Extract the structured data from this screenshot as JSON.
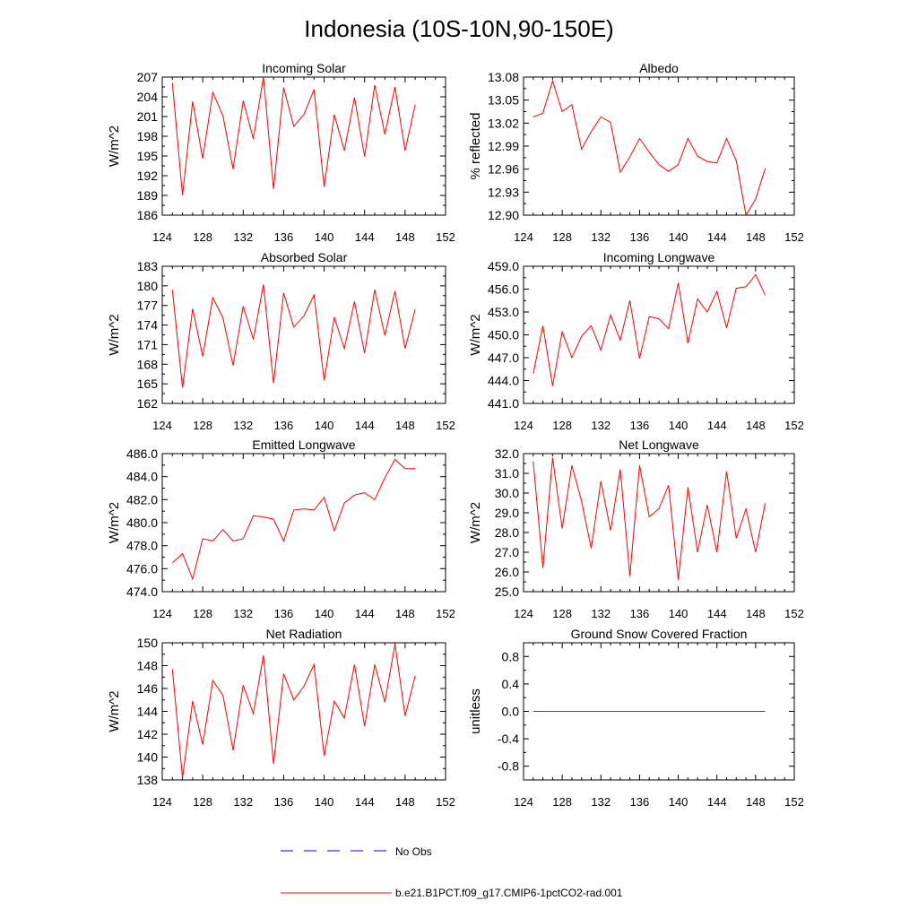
{
  "title": "Indonesia (10S-10N,90-150E)",
  "colors": {
    "series": "#ff0000",
    "obs": "#0000ff",
    "axis": "#000000"
  },
  "legend": {
    "obs_label": "No Obs",
    "run_label": "b.e21.B1PCT.f09_g17.CMIP6-1pctCO2-rad.001"
  },
  "chart_data": [
    {
      "type": "line",
      "title": "Incoming Solar",
      "ylabel": "W/m^2",
      "xlim": [
        124,
        152
      ],
      "xticks": [
        124,
        128,
        132,
        136,
        140,
        144,
        148,
        152
      ],
      "ylim": [
        186,
        207
      ],
      "yticks": [
        "186",
        "189",
        "192",
        "195",
        "198",
        "201",
        "204",
        "207"
      ],
      "ytick_values": [
        186,
        189,
        192,
        195,
        198,
        201,
        204,
        207
      ],
      "x": [
        125,
        126,
        127,
        128,
        129,
        130,
        131,
        132,
        133,
        134,
        135,
        136,
        137,
        138,
        139,
        140,
        141,
        142,
        143,
        144,
        145,
        146,
        147,
        148,
        149
      ],
      "series": [
        {
          "values": [
            206.1,
            189.0,
            203.3,
            194.6,
            204.7,
            201.1,
            193.0,
            203.4,
            197.6,
            207.0,
            190.0,
            205.4,
            199.5,
            201.3,
            205.1,
            190.3,
            201.3,
            195.8,
            203.9,
            194.9,
            205.8,
            198.3,
            205.5,
            195.8,
            202.8
          ]
        }
      ]
    },
    {
      "type": "line",
      "title": "Albedo",
      "ylabel": "% reflected",
      "xlim": [
        124,
        152
      ],
      "xticks": [
        124,
        128,
        132,
        136,
        140,
        144,
        148,
        152
      ],
      "ylim": [
        12.9,
        13.08
      ],
      "yticks": [
        "12.90",
        "12.93",
        "12.96",
        "12.99",
        "13.02",
        "13.05",
        "13.08"
      ],
      "ytick_values": [
        12.9,
        12.93,
        12.96,
        12.99,
        13.02,
        13.05,
        13.08
      ],
      "x": [
        125,
        126,
        127,
        128,
        129,
        130,
        131,
        132,
        133,
        134,
        135,
        136,
        137,
        138,
        139,
        140,
        141,
        142,
        143,
        144,
        145,
        146,
        147,
        148,
        149
      ],
      "series": [
        {
          "values": [
            13.028,
            13.033,
            13.075,
            13.035,
            13.044,
            12.986,
            13.009,
            13.028,
            13.021,
            12.956,
            12.976,
            13.0,
            12.982,
            12.966,
            12.957,
            12.966,
            13.0,
            12.977,
            12.97,
            12.968,
            13.0,
            12.971,
            12.9,
            12.921,
            12.961
          ]
        }
      ]
    },
    {
      "type": "line",
      "title": "Absorbed Solar",
      "ylabel": "W/m^2",
      "xlim": [
        124,
        152
      ],
      "xticks": [
        124,
        128,
        132,
        136,
        140,
        144,
        148,
        152
      ],
      "ylim": [
        162,
        183
      ],
      "yticks": [
        "162",
        "165",
        "168",
        "171",
        "174",
        "177",
        "180",
        "183"
      ],
      "ytick_values": [
        162,
        165,
        168,
        171,
        174,
        177,
        180,
        183
      ],
      "x": [
        125,
        126,
        127,
        128,
        129,
        130,
        131,
        132,
        133,
        134,
        135,
        136,
        137,
        138,
        139,
        140,
        141,
        142,
        143,
        144,
        145,
        146,
        147,
        148,
        149
      ],
      "series": [
        {
          "values": [
            179.4,
            164.4,
            176.5,
            169.2,
            178.2,
            175.1,
            167.8,
            176.9,
            171.8,
            180.2,
            165.1,
            178.9,
            173.7,
            175.4,
            178.6,
            165.5,
            175.2,
            170.4,
            177.6,
            169.7,
            179.4,
            172.4,
            179.2,
            170.4,
            176.4
          ]
        }
      ]
    },
    {
      "type": "line",
      "title": "Incoming Longwave",
      "ylabel": "W/m^2",
      "xlim": [
        124,
        152
      ],
      "xticks": [
        124,
        128,
        132,
        136,
        140,
        144,
        148,
        152
      ],
      "ylim": [
        441,
        459
      ],
      "yticks": [
        "441.0",
        "444.0",
        "447.0",
        "450.0",
        "453.0",
        "456.0",
        "459.0"
      ],
      "ytick_values": [
        441,
        444,
        447,
        450,
        453,
        456,
        459
      ],
      "x": [
        125,
        126,
        127,
        128,
        129,
        130,
        131,
        132,
        133,
        134,
        135,
        136,
        137,
        138,
        139,
        140,
        141,
        142,
        143,
        144,
        145,
        146,
        147,
        148,
        149
      ],
      "series": [
        {
          "values": [
            444.9,
            451.2,
            443.3,
            450.4,
            447.0,
            449.8,
            451.2,
            448.0,
            452.6,
            449.3,
            454.5,
            446.9,
            452.4,
            452.1,
            450.8,
            456.8,
            448.9,
            454.7,
            453.0,
            455.7,
            450.9,
            456.1,
            456.3,
            457.9,
            455.2
          ]
        }
      ]
    },
    {
      "type": "line",
      "title": "Emitted Longwave",
      "ylabel": "W/m^2",
      "xlim": [
        124,
        152
      ],
      "xticks": [
        124,
        128,
        132,
        136,
        140,
        144,
        148,
        152
      ],
      "ylim": [
        474,
        486
      ],
      "yticks": [
        "474.0",
        "476.0",
        "478.0",
        "480.0",
        "482.0",
        "484.0",
        "486.0"
      ],
      "ytick_values": [
        474,
        476,
        478,
        480,
        482,
        484,
        486
      ],
      "x": [
        125,
        126,
        127,
        128,
        129,
        130,
        131,
        132,
        133,
        134,
        135,
        136,
        137,
        138,
        139,
        140,
        141,
        142,
        143,
        144,
        145,
        146,
        147,
        148,
        149
      ],
      "series": [
        {
          "values": [
            476.5,
            477.3,
            475.1,
            478.6,
            478.4,
            479.4,
            478.4,
            478.6,
            480.6,
            480.5,
            480.3,
            478.4,
            481.1,
            481.2,
            481.1,
            482.2,
            479.3,
            481.7,
            482.4,
            482.6,
            482.0,
            483.9,
            485.5,
            484.7,
            484.7
          ]
        }
      ]
    },
    {
      "type": "line",
      "title": "Net Longwave",
      "ylabel": "W/m^2",
      "xlim": [
        124,
        152
      ],
      "xticks": [
        124,
        128,
        132,
        136,
        140,
        144,
        148,
        152
      ],
      "ylim": [
        25,
        32
      ],
      "yticks": [
        "25.0",
        "26.0",
        "27.0",
        "28.0",
        "29.0",
        "30.0",
        "31.0",
        "32.0"
      ],
      "ytick_values": [
        25,
        26,
        27,
        28,
        29,
        30,
        31,
        32
      ],
      "x": [
        125,
        126,
        127,
        128,
        129,
        130,
        131,
        132,
        133,
        134,
        135,
        136,
        137,
        138,
        139,
        140,
        141,
        142,
        143,
        144,
        145,
        146,
        147,
        148,
        149
      ],
      "series": [
        {
          "values": [
            31.6,
            26.2,
            31.8,
            28.2,
            31.4,
            29.6,
            27.2,
            30.6,
            28.1,
            31.2,
            25.8,
            31.4,
            28.8,
            29.2,
            30.4,
            25.6,
            30.3,
            27.0,
            29.4,
            27.0,
            31.1,
            27.7,
            29.2,
            27.0,
            29.5
          ]
        }
      ]
    },
    {
      "type": "line",
      "title": "Net Radiation",
      "ylabel": "W/m^2",
      "xlim": [
        124,
        152
      ],
      "xticks": [
        124,
        128,
        132,
        136,
        140,
        144,
        148,
        152
      ],
      "ylim": [
        138,
        150
      ],
      "yticks": [
        "138",
        "140",
        "142",
        "144",
        "146",
        "148",
        "150"
      ],
      "ytick_values": [
        138,
        140,
        142,
        144,
        146,
        148,
        150
      ],
      "x": [
        125,
        126,
        127,
        128,
        129,
        130,
        131,
        132,
        133,
        134,
        135,
        136,
        137,
        138,
        139,
        140,
        141,
        142,
        143,
        144,
        145,
        146,
        147,
        148,
        149
      ],
      "series": [
        {
          "values": [
            147.7,
            138.2,
            144.9,
            141.1,
            146.7,
            145.4,
            140.6,
            146.3,
            143.8,
            148.9,
            139.4,
            147.3,
            145.0,
            146.2,
            148.1,
            140.1,
            144.9,
            143.4,
            148.1,
            142.7,
            148.1,
            144.8,
            149.9,
            143.6,
            147.1
          ]
        }
      ]
    },
    {
      "type": "line",
      "title": "Ground Snow Covered Fraction",
      "ylabel": "unitless",
      "xlim": [
        124,
        152
      ],
      "xticks": [
        124,
        128,
        132,
        136,
        140,
        144,
        148,
        152
      ],
      "ylim": [
        -1.0,
        1.0
      ],
      "yticks": [
        "-0.8",
        "-0.4",
        "0.0",
        "0.4",
        "0.8"
      ],
      "ytick_values": [
        -0.8,
        -0.4,
        0.0,
        0.4,
        0.8
      ],
      "x": [
        125,
        149
      ],
      "series": [
        {
          "values": [
            0.0,
            0.0
          ]
        }
      ]
    }
  ]
}
